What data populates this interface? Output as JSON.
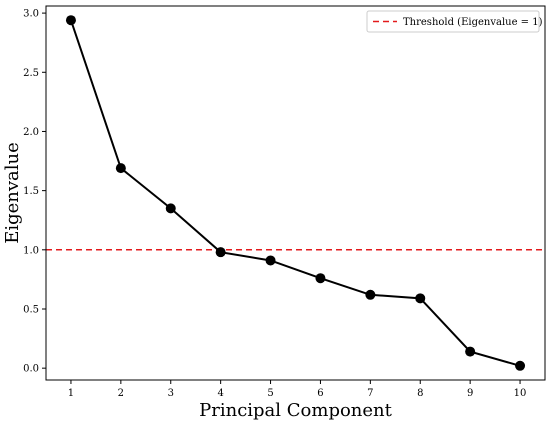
{
  "chart_data": {
    "type": "line",
    "x": [
      1,
      2,
      3,
      4,
      5,
      6,
      7,
      8,
      9,
      10
    ],
    "series": [
      {
        "values": [
          2.94,
          1.69,
          1.35,
          0.98,
          0.91,
          0.76,
          0.62,
          0.59,
          0.14,
          0.02
        ],
        "color": "#000000",
        "marker": "circle"
      }
    ],
    "threshold": {
      "value": 1.0,
      "label": "Threshold (Eigenvalue = 1)",
      "color": "#e31a1c",
      "style": "dashed"
    },
    "xlabel": "Principal Component",
    "ylabel": "Eigenvalue",
    "xlim": [
      0.5,
      10.5
    ],
    "ylim": [
      -0.1,
      3.06
    ],
    "xticks": [
      "1",
      "2",
      "3",
      "4",
      "5",
      "6",
      "7",
      "8",
      "9",
      "10"
    ],
    "yticks": [
      "0.0",
      "0.5",
      "1.0",
      "1.5",
      "2.0",
      "2.5",
      "3.0"
    ],
    "grid": false,
    "legend_position": "top-right"
  }
}
